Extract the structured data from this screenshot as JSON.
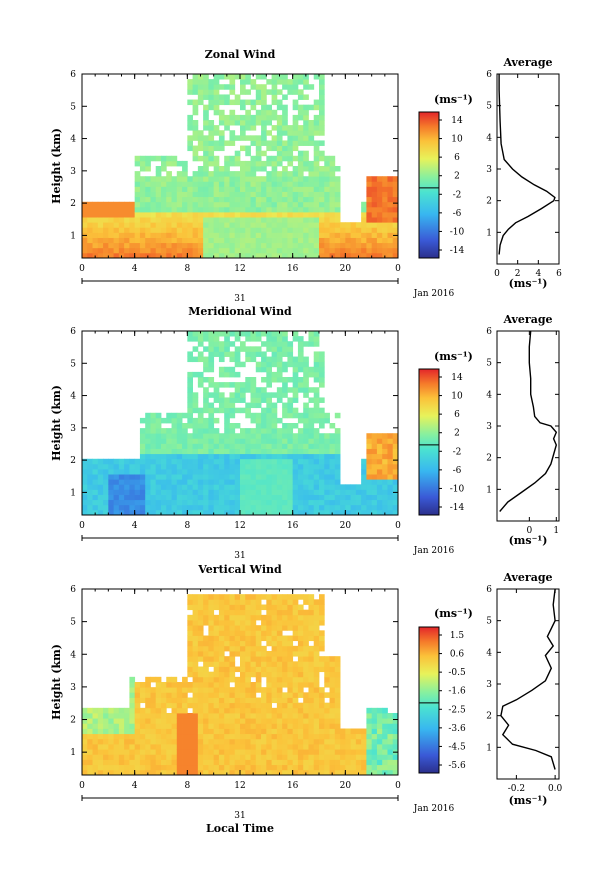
{
  "chart_data": [
    {
      "type": "heatmap",
      "title": "Zonal Wind",
      "ylabel": "Height (km)",
      "xlim": [
        0,
        24
      ],
      "ylim": [
        0.3,
        6
      ],
      "x_ticks": [
        "0",
        "4",
        "8",
        "12",
        "16",
        "20",
        "0"
      ],
      "y_ticks": [
        "1",
        "2",
        "3",
        "4",
        "5",
        "6"
      ],
      "day_label": "31",
      "date_label": "Jan 2016",
      "colorbar": {
        "unit": "(ms⁻¹)",
        "ticks": [
          "14",
          "10",
          "6",
          "2",
          "-2",
          "-6",
          "-10",
          "-14"
        ],
        "range": [
          -16,
          16
        ]
      },
      "description_values": {
        "low_level_max_ms": 14,
        "upper_level_typical_ms": 2
      }
    },
    {
      "type": "line",
      "title": "Average",
      "xlabel": "(ms⁻¹)",
      "x_ticks": [
        "0",
        "2",
        "4",
        "6"
      ],
      "y_ticks": [
        "1",
        "2",
        "3",
        "4",
        "5",
        "6"
      ],
      "xlim": [
        0,
        6
      ],
      "ylim": [
        0,
        6
      ],
      "points": [
        [
          0.2,
          0.3
        ],
        [
          0.3,
          0.6
        ],
        [
          0.6,
          0.9
        ],
        [
          1.1,
          1.1
        ],
        [
          1.8,
          1.3
        ],
        [
          3.0,
          1.5
        ],
        [
          4.3,
          1.75
        ],
        [
          5.5,
          2.0
        ],
        [
          5.6,
          2.1
        ],
        [
          4.8,
          2.3
        ],
        [
          3.6,
          2.5
        ],
        [
          2.4,
          2.75
        ],
        [
          1.5,
          3.0
        ],
        [
          0.7,
          3.3
        ],
        [
          0.4,
          3.8
        ],
        [
          0.3,
          4.5
        ],
        [
          0.2,
          5.5
        ],
        [
          0.2,
          6.0
        ]
      ]
    },
    {
      "type": "heatmap",
      "title": "Meridional Wind",
      "ylabel": "Height (km)",
      "xlim": [
        0,
        24
      ],
      "ylim": [
        0.3,
        6
      ],
      "x_ticks": [
        "0",
        "4",
        "8",
        "12",
        "16",
        "20",
        "0"
      ],
      "y_ticks": [
        "1",
        "2",
        "3",
        "4",
        "5",
        "6"
      ],
      "day_label": "31",
      "date_label": "Jan 2016",
      "colorbar": {
        "unit": "(ms⁻¹)",
        "ticks": [
          "14",
          "10",
          "6",
          "2",
          "-2",
          "-6",
          "-10",
          "-14"
        ],
        "range": [
          -16,
          16
        ]
      }
    },
    {
      "type": "line",
      "title": "Average",
      "xlabel": "(ms⁻¹)",
      "x_ticks": [
        "0",
        "1"
      ],
      "y_ticks": [
        "1",
        "2",
        "3",
        "4",
        "5",
        "6"
      ],
      "xlim": [
        -1.2,
        1.1
      ],
      "ylim": [
        0,
        6
      ],
      "points": [
        [
          -1.1,
          0.3
        ],
        [
          -0.8,
          0.6
        ],
        [
          -0.3,
          0.9
        ],
        [
          0.2,
          1.2
        ],
        [
          0.6,
          1.5
        ],
        [
          0.8,
          1.8
        ],
        [
          0.9,
          2.1
        ],
        [
          1.0,
          2.4
        ],
        [
          0.9,
          2.6
        ],
        [
          1.0,
          2.8
        ],
        [
          0.8,
          3.0
        ],
        [
          0.4,
          3.1
        ],
        [
          0.2,
          3.3
        ],
        [
          0.15,
          3.6
        ],
        [
          0.05,
          4.0
        ],
        [
          0.05,
          4.5
        ],
        [
          0.0,
          5.0
        ],
        [
          0.0,
          5.5
        ],
        [
          0.05,
          6.0
        ]
      ]
    },
    {
      "type": "heatmap",
      "title": "Vertical Wind",
      "ylabel": "Height (km)",
      "xlabel": "Local Time",
      "xlim": [
        0,
        24
      ],
      "ylim": [
        0.3,
        6
      ],
      "x_ticks": [
        "0",
        "4",
        "8",
        "12",
        "16",
        "20",
        "0"
      ],
      "y_ticks": [
        "1",
        "2",
        "3",
        "4",
        "5",
        "6"
      ],
      "day_label": "31",
      "date_label": "Jan 2016",
      "colorbar": {
        "unit": "(ms⁻¹)",
        "ticks": [
          "1.5",
          "0.6",
          "-0.5",
          "-1.6",
          "-2.5",
          "-3.6",
          "-4.5",
          "-5.6"
        ],
        "range": [
          -6,
          2
        ]
      }
    },
    {
      "type": "line",
      "title": "Average",
      "xlabel": "(ms⁻¹)",
      "x_ticks": [
        "-0.2",
        "0.0"
      ],
      "y_ticks": [
        "1",
        "2",
        "3",
        "4",
        "5",
        "6"
      ],
      "xlim": [
        -0.3,
        0.02
      ],
      "ylim": [
        0,
        6
      ],
      "points": [
        [
          0.0,
          0.3
        ],
        [
          -0.02,
          0.7
        ],
        [
          -0.1,
          0.9
        ],
        [
          -0.22,
          1.1
        ],
        [
          -0.27,
          1.4
        ],
        [
          -0.24,
          1.7
        ],
        [
          -0.28,
          2.0
        ],
        [
          -0.27,
          2.3
        ],
        [
          -0.2,
          2.5
        ],
        [
          -0.12,
          2.8
        ],
        [
          -0.05,
          3.1
        ],
        [
          -0.02,
          3.5
        ],
        [
          -0.05,
          3.9
        ],
        [
          -0.01,
          4.2
        ],
        [
          -0.04,
          4.5
        ],
        [
          0.0,
          5.0
        ],
        [
          -0.01,
          5.5
        ],
        [
          0.0,
          6.0
        ]
      ]
    }
  ]
}
